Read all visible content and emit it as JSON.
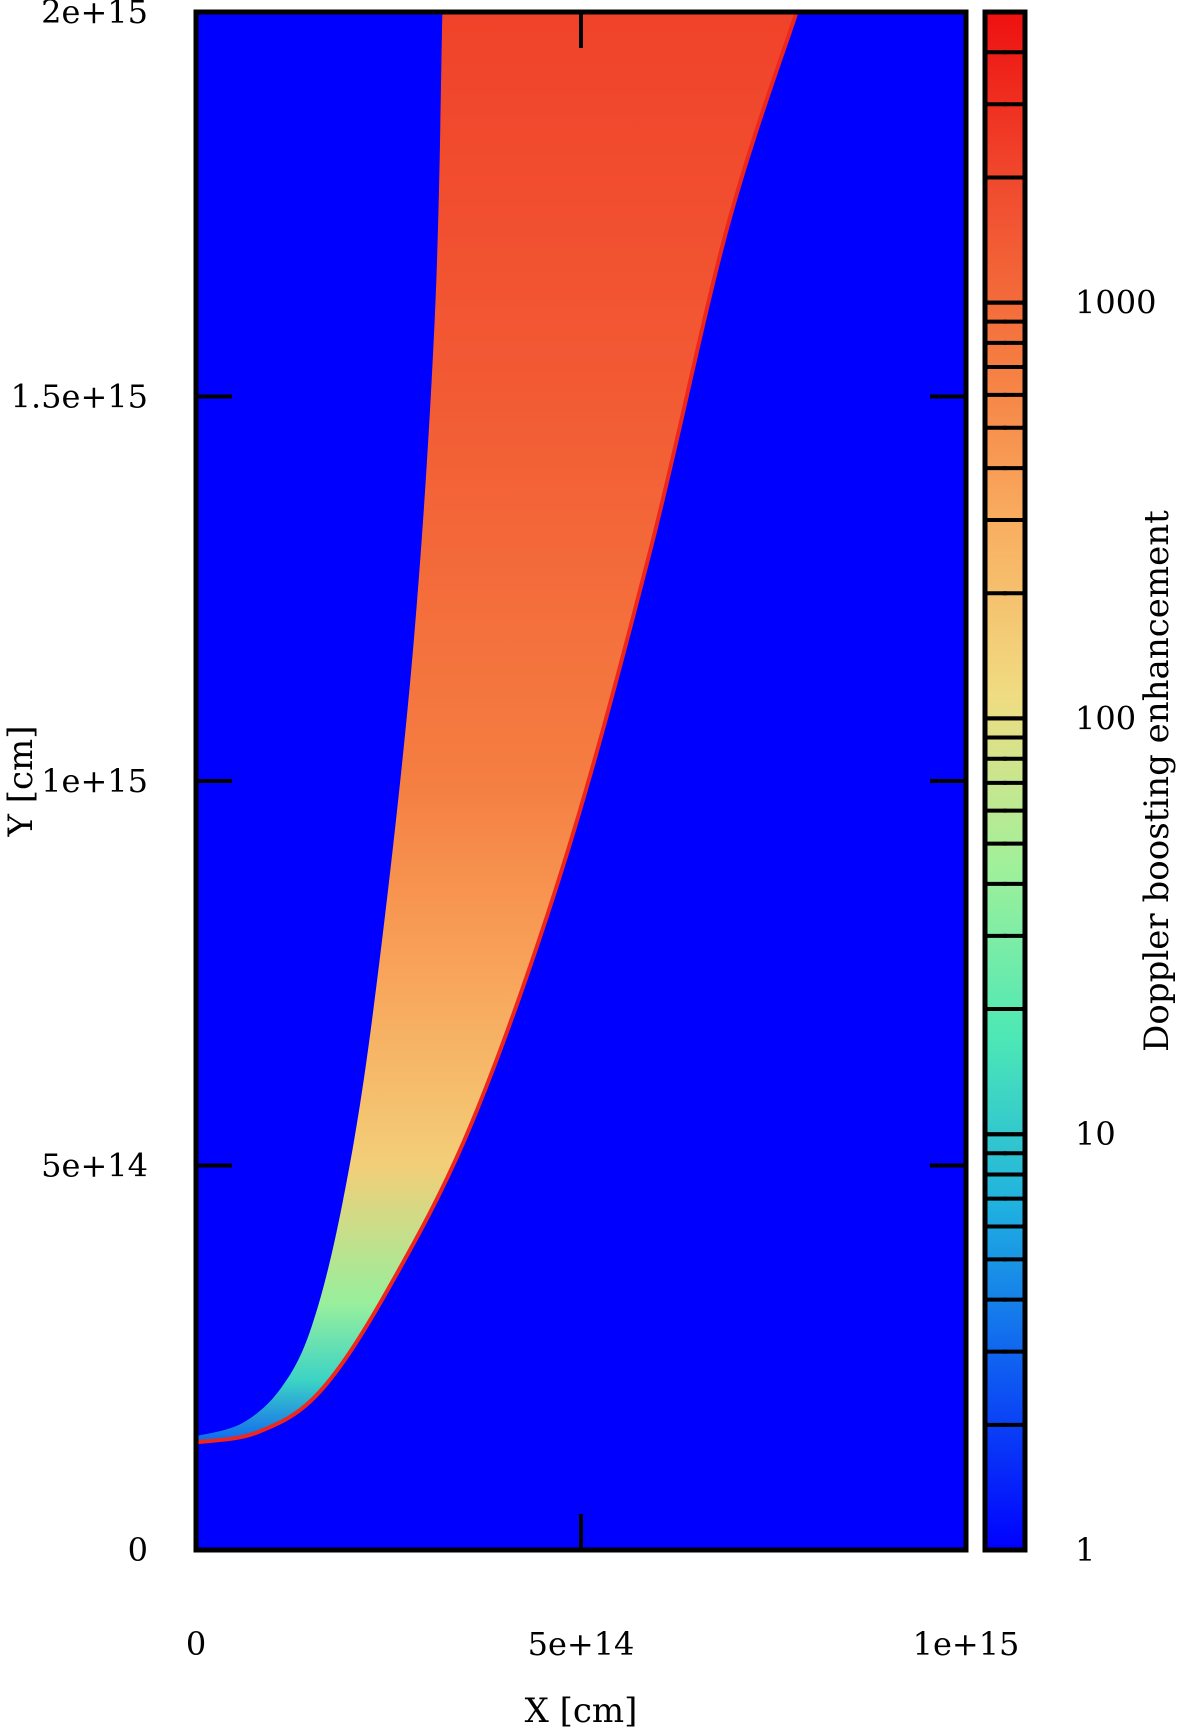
{
  "chart_data": {
    "type": "heatmap",
    "title": "",
    "xlabel": "X [cm]",
    "ylabel": "Y [cm]",
    "xlim": [
      0,
      1000000000000000.0
    ],
    "ylim": [
      0,
      2000000000000000.0
    ],
    "x_ticks": [
      {
        "value": 0,
        "label": "0"
      },
      {
        "value": 500000000000000.0,
        "label": "5e+14"
      },
      {
        "value": 1000000000000000.0,
        "label": "1e+15"
      }
    ],
    "y_ticks": [
      {
        "value": 0,
        "label": "0"
      },
      {
        "value": 500000000000000.0,
        "label": "5e+14"
      },
      {
        "value": 1000000000000000.0,
        "label": "1e+15"
      },
      {
        "value": 1500000000000000.0,
        "label": "1.5e+15"
      },
      {
        "value": 2000000000000000.0,
        "label": "2e+15"
      }
    ],
    "colorbar": {
      "label": "Doppler boosting enhancement",
      "scale": "log",
      "range": [
        1,
        5000
      ],
      "ticks": [
        {
          "value": 1,
          "label": "1"
        },
        {
          "value": 10,
          "label": "10"
        },
        {
          "value": 100,
          "label": "100"
        },
        {
          "value": 1000,
          "label": "1000"
        }
      ],
      "colormap": [
        "#0000ff",
        "#0e58f2",
        "#1fb0e0",
        "#4de8b5",
        "#a0f09a",
        "#f0dc82",
        "#f9ae60",
        "#f57a40",
        "#f04a2e",
        "#ee1010"
      ]
    },
    "background_value": 1,
    "region": {
      "description_in_data_units": "boosted shell bounded by inner and outer edges",
      "inner_edge": [
        {
          "x": 0,
          "y": 148000000000000.0
        },
        {
          "x": 60000000000000.0,
          "y": 165000000000000.0
        },
        {
          "x": 110000000000000.0,
          "y": 210000000000000.0
        },
        {
          "x": 150000000000000.0,
          "y": 290000000000000.0
        },
        {
          "x": 190000000000000.0,
          "y": 450000000000000.0
        },
        {
          "x": 230000000000000.0,
          "y": 700000000000000.0
        },
        {
          "x": 280000000000000.0,
          "y": 1150000000000000.0
        },
        {
          "x": 310000000000000.0,
          "y": 1600000000000000.0
        },
        {
          "x": 320000000000000.0,
          "y": 2000000000000000.0
        }
      ],
      "outer_edge": [
        {
          "x": 0,
          "y": 140000000000000.0
        },
        {
          "x": 80000000000000.0,
          "y": 153000000000000.0
        },
        {
          "x": 160000000000000.0,
          "y": 205000000000000.0
        },
        {
          "x": 250000000000000.0,
          "y": 340000000000000.0
        },
        {
          "x": 360000000000000.0,
          "y": 560000000000000.0
        },
        {
          "x": 480000000000000.0,
          "y": 900000000000000.0
        },
        {
          "x": 590000000000000.0,
          "y": 1300000000000000.0
        },
        {
          "x": 690000000000000.0,
          "y": 1720000000000000.0
        },
        {
          "x": 780000000000000.0,
          "y": 2000000000000000.0
        }
      ],
      "value_by_y": [
        {
          "y": 140000000000000.0,
          "value": 3
        },
        {
          "y": 220000000000000.0,
          "value": 12
        },
        {
          "y": 320000000000000.0,
          "value": 40
        },
        {
          "y": 500000000000000.0,
          "value": 150
        },
        {
          "y": 750000000000000.0,
          "value": 350
        },
        {
          "y": 1000000000000000.0,
          "value": 700
        },
        {
          "y": 1500000000000000.0,
          "value": 1400
        },
        {
          "y": 2000000000000000.0,
          "value": 2200
        }
      ],
      "outer_rim_value": 3500
    }
  }
}
